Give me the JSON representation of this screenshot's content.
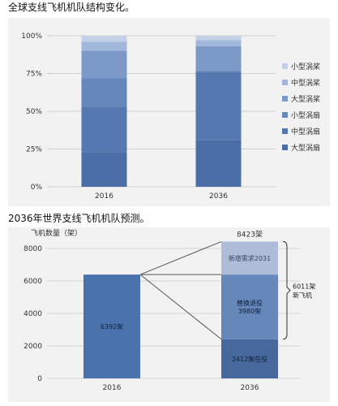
{
  "captions": {
    "chart1": "全球支线飞机机队结构变化。",
    "chart2": "2036年世界支线飞机机队预测。"
  },
  "chart_data": [
    {
      "type": "bar",
      "stacked": true,
      "percent": true,
      "categories": [
        "2016",
        "2036"
      ],
      "yticks": [
        "0%",
        "25%",
        "50%",
        "75%",
        "100%"
      ],
      "ylim": [
        0,
        100
      ],
      "legend_position": "right",
      "grid": true,
      "series": [
        {
          "name": "大型涡扇",
          "values": [
            23,
            31
          ],
          "color": "#4a6ea5"
        },
        {
          "name": "中型涡扇",
          "values": [
            30,
            45
          ],
          "color": "#5578b0"
        },
        {
          "name": "小型涡扇",
          "values": [
            19,
            1
          ],
          "color": "#6587bb"
        },
        {
          "name": "大型涡桨",
          "values": [
            18,
            16
          ],
          "color": "#7b9ac8"
        },
        {
          "name": "中型涡桨",
          "values": [
            6,
            4
          ],
          "color": "#a2b8da"
        },
        {
          "name": "小型涡桨",
          "values": [
            4,
            3
          ],
          "color": "#c3d0e6"
        }
      ]
    },
    {
      "type": "bar",
      "stacked": true,
      "categories": [
        "2016",
        "2036"
      ],
      "ylabel": "飞机数量（架）",
      "yticks": [
        "0",
        "2000",
        "4000",
        "6000",
        "8000"
      ],
      "ylim": [
        0,
        8000
      ],
      "grid": true,
      "bars": [
        {
          "category": "2016",
          "total_label": "",
          "segments": [
            {
              "value": 6392,
              "label": "6392架",
              "color": "#4a73ad"
            }
          ]
        },
        {
          "category": "2036",
          "total_label": "8423架",
          "segments": [
            {
              "value": 2412,
              "label": "2412架在役",
              "color": "#47689c"
            },
            {
              "value": 3980,
              "label": "替换退役\n3980架",
              "color": "#6687ba"
            },
            {
              "value": 2031,
              "label": "新增需求2031",
              "color": "#aebcd7"
            }
          ]
        }
      ],
      "annotation": "6011架\n新飞机"
    }
  ]
}
